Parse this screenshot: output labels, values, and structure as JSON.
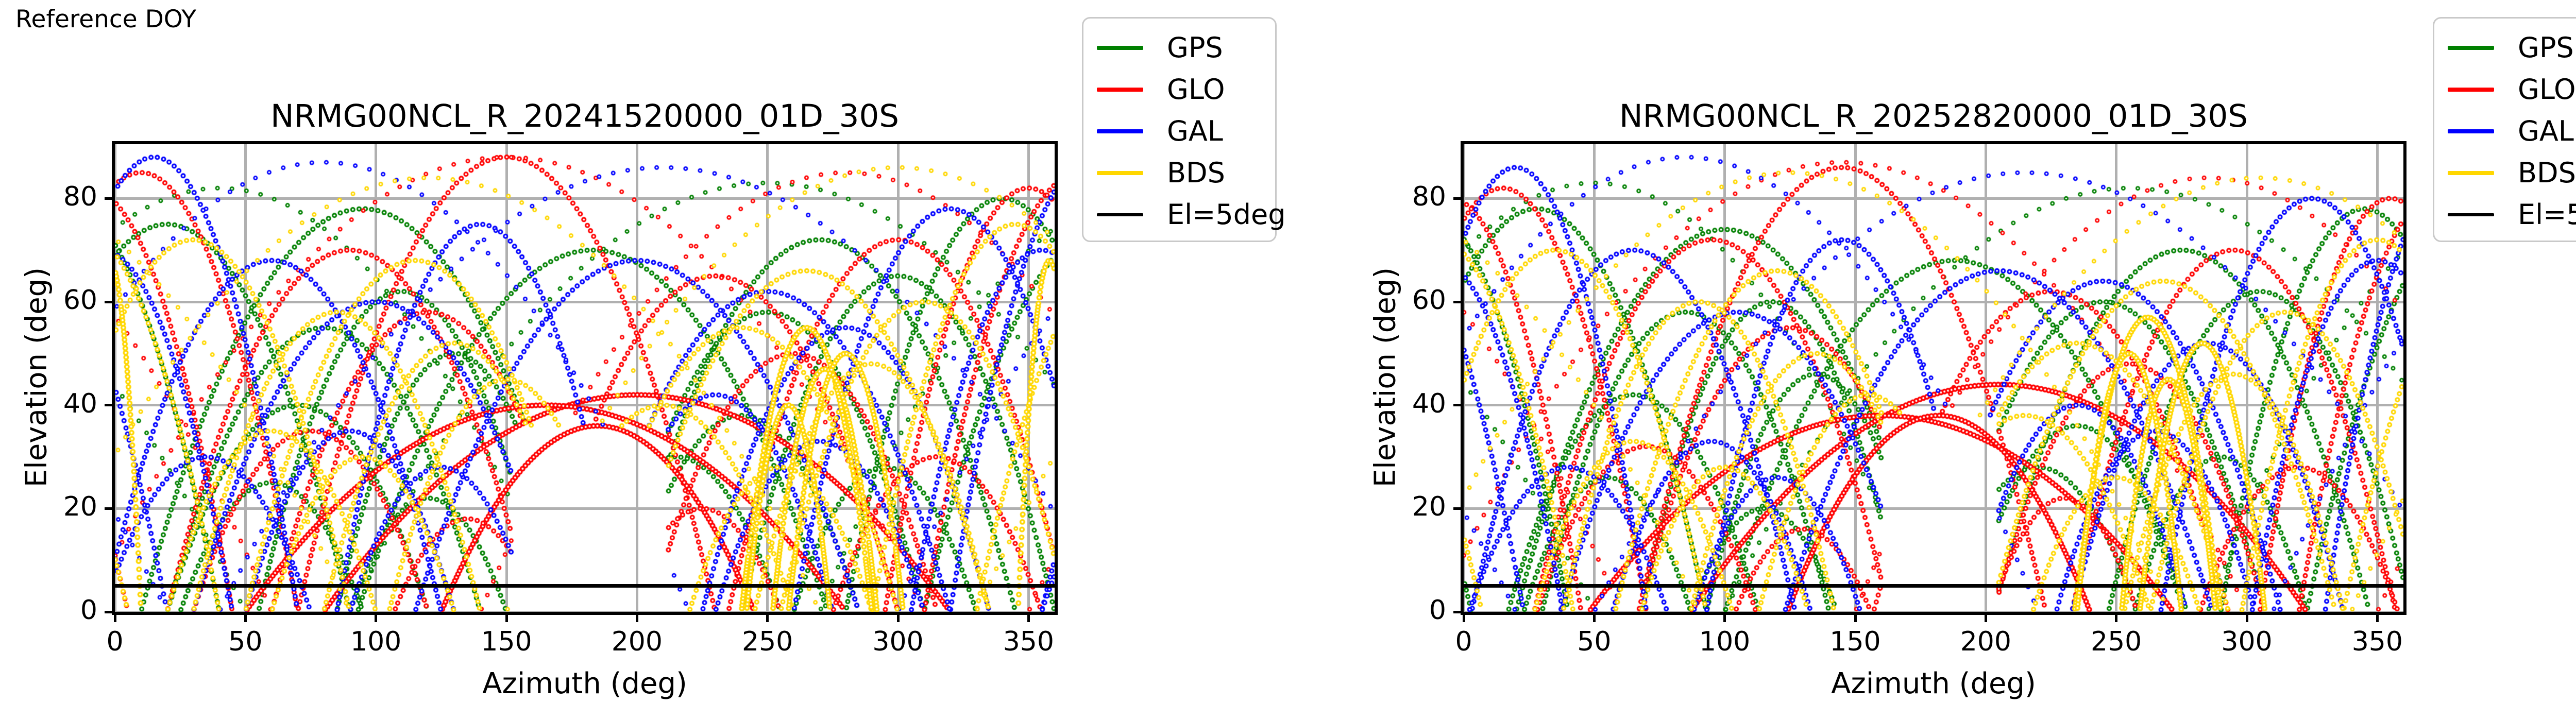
{
  "figure_label": "Reference DOY",
  "colors": {
    "gps": "#008000",
    "glo": "#ff0000",
    "gal": "#0000ff",
    "bds": "#ffd700",
    "cutoff": "#000000",
    "grid": "#b0b0b0",
    "legend_border": "#c9c9c9"
  },
  "legend": {
    "entries": [
      {
        "label": "GPS",
        "color": "#008000",
        "lw": 8
      },
      {
        "label": "GLO",
        "color": "#ff0000",
        "lw": 8
      },
      {
        "label": "GAL",
        "color": "#0000ff",
        "lw": 8
      },
      {
        "label": "BDS",
        "color": "#ffd700",
        "lw": 8
      },
      {
        "label": "El=5deg",
        "color": "#000000",
        "lw": 6
      }
    ]
  },
  "arc_format": [
    "az_center_deg",
    "az_halfwidth_deg",
    "peak_elevation_deg",
    "style_flag (0=normal, 1=sparse_near_zenith, 2=wide_crossing_pass, 3=dense_cluster)"
  ],
  "chart_data": [
    {
      "type": "scatter",
      "title": "NRMG00NCL_R_20241520000_01D_30S",
      "xlabel": "Azimuth (deg)",
      "ylabel": "Elevation (deg)",
      "xlim": [
        0,
        360
      ],
      "ylim": [
        0,
        90.5
      ],
      "xticks": [
        0,
        50,
        100,
        150,
        200,
        250,
        300,
        350
      ],
      "yticks": [
        0,
        20,
        40,
        60,
        80
      ],
      "grid": true,
      "el_cutoff_deg": 5,
      "shadow_void": {
        "az_min": 152,
        "az_max": 212,
        "el_max": 36
      },
      "series": [
        {
          "name": "GPS",
          "color": "#008000",
          "arcs": [
            [
              20,
              70,
              75,
              0
            ],
            [
              95,
              85,
              78,
              0
            ],
            [
              80,
              60,
              55,
              0
            ],
            [
              110,
              55,
              62,
              0
            ],
            [
              130,
              45,
              50,
              0
            ],
            [
              70,
              50,
              40,
              0
            ],
            [
              250,
              60,
              58,
              0
            ],
            [
              270,
              75,
              72,
              0
            ],
            [
              300,
              60,
              65,
              0
            ],
            [
              240,
              45,
              38,
              0
            ],
            [
              340,
              60,
              80,
              0
            ],
            [
              183,
              90,
              70,
              0
            ],
            [
              215,
              40,
              30,
              0
            ],
            [
              120,
              30,
              22,
              0
            ],
            [
              60,
              35,
              25,
              0
            ],
            [
              295,
              35,
              28,
              0
            ],
            [
              40,
              130,
              82,
              1
            ],
            [
              250,
              160,
              83,
              1
            ]
          ]
        },
        {
          "name": "GLO",
          "color": "#ff0000",
          "arcs": [
            [
              10,
              60,
              85,
              0
            ],
            [
              90,
              70,
              70,
              0
            ],
            [
              120,
              60,
              58,
              0
            ],
            [
              150,
              80,
              88,
              0
            ],
            [
              230,
              70,
              65,
              0
            ],
            [
              260,
              55,
              50,
              0
            ],
            [
              300,
              65,
              72,
              0
            ],
            [
              350,
              55,
              82,
              0
            ],
            [
              200,
              120,
              42,
              2
            ],
            [
              165,
              115,
              40,
              2
            ],
            [
              185,
              60,
              36,
              2
            ],
            [
              135,
              28,
              18,
              0
            ],
            [
              225,
              30,
              20,
              0
            ],
            [
              75,
              45,
              35,
              0
            ],
            [
              315,
              40,
              30,
              0
            ],
            [
              150,
              160,
              88,
              1
            ],
            [
              280,
              140,
              85,
              1
            ]
          ]
        },
        {
          "name": "GAL",
          "color": "#0000ff",
          "arcs": [
            [
              15,
              55,
              88,
              0
            ],
            [
              60,
              65,
              68,
              0
            ],
            [
              100,
              70,
              60,
              0
            ],
            [
              140,
              55,
              75,
              0
            ],
            [
              250,
              70,
              62,
              0
            ],
            [
              280,
              55,
              55,
              0
            ],
            [
              320,
              60,
              78,
              0
            ],
            [
              355,
              50,
              70,
              0
            ],
            [
              90,
              40,
              35,
              0
            ],
            [
              270,
              40,
              33,
              0
            ],
            [
              200,
              85,
              68,
              0
            ],
            [
              35,
              40,
              30,
              0
            ],
            [
              230,
              45,
              42,
              0
            ],
            [
              125,
              35,
              28,
              0
            ],
            [
              210,
              170,
              86,
              1
            ],
            [
              80,
              140,
              87,
              1
            ]
          ]
        },
        {
          "name": "BDS",
          "color": "#ffd700",
          "arcs": [
            [
              30,
              60,
              72,
              0
            ],
            [
              85,
              55,
              58,
              0
            ],
            [
              115,
              65,
              68,
              0
            ],
            [
              95,
              35,
              30,
              0
            ],
            [
              240,
              60,
              55,
              0
            ],
            [
              265,
              70,
              66,
              0
            ],
            [
              310,
              55,
              60,
              0
            ],
            [
              345,
              55,
              75,
              0
            ],
            [
              255,
              35,
              28,
              0
            ],
            [
              150,
              45,
              45,
              0
            ],
            [
              210,
              50,
              40,
              0
            ],
            [
              60,
              40,
              35,
              0
            ],
            [
              290,
              45,
              48,
              0
            ],
            [
              130,
              50,
              52,
              0
            ],
            [
              120,
              150,
              84,
              1
            ],
            [
              300,
              150,
              86,
              1
            ],
            [
              265,
              25,
              55,
              3
            ],
            [
              272,
              20,
              47,
              3
            ],
            [
              258,
              16,
              40,
              3
            ],
            [
              280,
              22,
              50,
              3
            ],
            [
              358,
              12,
              68,
              3
            ]
          ]
        }
      ]
    },
    {
      "type": "scatter",
      "title": "NRMG00NCL_R_20252820000_01D_30S",
      "xlabel": "Azimuth (deg)",
      "ylabel": "Elevation (deg)",
      "xlim": [
        0,
        360
      ],
      "ylim": [
        0,
        90.5
      ],
      "xticks": [
        0,
        50,
        100,
        150,
        200,
        250,
        300,
        350
      ],
      "yticks": [
        0,
        20,
        40,
        60,
        80
      ],
      "grid": true,
      "el_cutoff_deg": 5,
      "shadow_void": {
        "az_min": 160,
        "az_max": 205,
        "el_max": 38
      },
      "series": [
        {
          "name": "GPS",
          "color": "#008000",
          "arcs": [
            [
              28,
              65,
              78,
              0
            ],
            [
              100,
              80,
              74,
              0
            ],
            [
              85,
              55,
              58,
              0
            ],
            [
              118,
              50,
              60,
              0
            ],
            [
              135,
              42,
              46,
              0
            ],
            [
              65,
              48,
              42,
              0
            ],
            [
              245,
              62,
              60,
              0
            ],
            [
              275,
              72,
              70,
              0
            ],
            [
              305,
              58,
              62,
              0
            ],
            [
              235,
              42,
              36,
              0
            ],
            [
              345,
              55,
              78,
              0
            ],
            [
              188,
              88,
              68,
              0
            ],
            [
              220,
              38,
              28,
              0
            ],
            [
              115,
              28,
              20,
              0
            ],
            [
              55,
              32,
              26,
              0
            ],
            [
              290,
              33,
              30,
              0
            ],
            [
              50,
              125,
              83,
              1
            ],
            [
              255,
              155,
              82,
              1
            ]
          ]
        },
        {
          "name": "GLO",
          "color": "#ff0000",
          "arcs": [
            [
              15,
              55,
              82,
              0
            ],
            [
              95,
              68,
              72,
              0
            ],
            [
              125,
              58,
              55,
              0
            ],
            [
              145,
              78,
              86,
              0
            ],
            [
              225,
              68,
              62,
              0
            ],
            [
              255,
              52,
              48,
              0
            ],
            [
              295,
              62,
              70,
              0
            ],
            [
              355,
              50,
              80,
              0
            ],
            [
              205,
              118,
              44,
              2
            ],
            [
              160,
              112,
              38,
              2
            ],
            [
              182,
              58,
              38,
              2
            ],
            [
              130,
              26,
              16,
              0
            ],
            [
              230,
              28,
              22,
              0
            ],
            [
              70,
              42,
              32,
              0
            ],
            [
              320,
              38,
              28,
              0
            ],
            [
              145,
              155,
              87,
              1
            ],
            [
              285,
              135,
              84,
              1
            ]
          ]
        },
        {
          "name": "GAL",
          "color": "#0000ff",
          "arcs": [
            [
              20,
              50,
              86,
              0
            ],
            [
              65,
              62,
              70,
              0
            ],
            [
              105,
              68,
              58,
              0
            ],
            [
              145,
              52,
              72,
              0
            ],
            [
              245,
              68,
              64,
              0
            ],
            [
              285,
              52,
              52,
              0
            ],
            [
              325,
              58,
              80,
              0
            ],
            [
              350,
              48,
              68,
              0
            ],
            [
              95,
              38,
              33,
              0
            ],
            [
              265,
              38,
              35,
              0
            ],
            [
              205,
              82,
              66,
              0
            ],
            [
              40,
              38,
              28,
              0
            ],
            [
              235,
              42,
              40,
              0
            ],
            [
              120,
              32,
              26,
              0
            ],
            [
              215,
              165,
              85,
              1
            ],
            [
              85,
              135,
              88,
              1
            ]
          ]
        },
        {
          "name": "BDS",
          "color": "#ffd700",
          "arcs": [
            [
              35,
              58,
              70,
              0
            ],
            [
              90,
              52,
              60,
              0
            ],
            [
              120,
              62,
              66,
              0
            ],
            [
              100,
              32,
              28,
              0
            ],
            [
              235,
              58,
              52,
              0
            ],
            [
              268,
              66,
              64,
              0
            ],
            [
              315,
              52,
              58,
              0
            ],
            [
              350,
              52,
              72,
              0
            ],
            [
              250,
              32,
              26,
              0
            ],
            [
              155,
              42,
              42,
              0
            ],
            [
              215,
              48,
              38,
              0
            ],
            [
              65,
              38,
              33,
              0
            ],
            [
              295,
              42,
              46,
              0
            ],
            [
              135,
              48,
              50,
              0
            ],
            [
              125,
              145,
              85,
              1
            ],
            [
              305,
              145,
              84,
              1
            ],
            [
              262,
              28,
              57,
              3
            ],
            [
              270,
              18,
              45,
              3
            ],
            [
              255,
              20,
              50,
              3
            ],
            [
              283,
              24,
              52,
              3
            ]
          ]
        }
      ]
    }
  ],
  "layout_note": "two azimuth-elevation sky-track subplots with per-subplot legend"
}
